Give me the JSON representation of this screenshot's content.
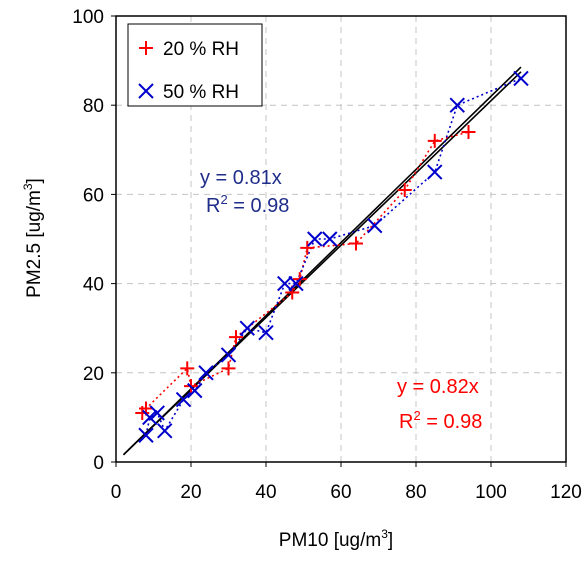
{
  "chart_data": {
    "type": "scatter",
    "xlabel": "PM10 [ug/m",
    "xlabel_sup": "3",
    "xlabel_end": "]",
    "ylabel": "PM2.5 [ug/m",
    "ylabel_sup": "3",
    "ylabel_end": "]",
    "xlim": [
      0,
      120
    ],
    "ylim": [
      0,
      100
    ],
    "x_ticks": [
      "0",
      "20",
      "40",
      "60",
      "80",
      "100",
      "120"
    ],
    "y_ticks": [
      "0",
      "20",
      "40",
      "60",
      "80",
      "100"
    ],
    "grid": true,
    "legend_position": "top-left",
    "series": [
      {
        "name": "20 % RH",
        "marker": "plus",
        "color": "#ff0000",
        "x": [
          7,
          8,
          19,
          20,
          30,
          32,
          47,
          49,
          51,
          64,
          77,
          85,
          94
        ],
        "y": [
          11,
          12,
          21,
          17,
          21,
          28,
          38,
          41,
          48,
          49,
          61,
          72,
          74
        ]
      },
      {
        "name": "50 % RH",
        "marker": "cross",
        "color": "#0000cc",
        "x": [
          8,
          9,
          11,
          13,
          18,
          21,
          24,
          30,
          35,
          40,
          45,
          48,
          53,
          57,
          69,
          85,
          91,
          108
        ],
        "y": [
          6,
          10,
          11,
          7,
          14,
          16,
          20,
          24,
          30,
          29,
          40,
          40,
          50,
          50,
          53,
          65,
          80,
          86
        ]
      }
    ],
    "trendlines": [
      {
        "series": "20 % RH",
        "slope": 0.82,
        "x_range": [
          2,
          108
        ],
        "color": "#000000"
      },
      {
        "series": "50 % RH",
        "slope": 0.81,
        "x_range": [
          2,
          108
        ],
        "color": "#000000"
      }
    ],
    "annotations": [
      {
        "id": "blue-eq",
        "line1": "y = 0.81x",
        "line2_pre": "R",
        "line2_sup": "2",
        "line2_post": " = 0.98",
        "color": "#1f2d8a"
      },
      {
        "id": "red-eq",
        "line1": "y = 0.82x",
        "line2_pre": "R",
        "line2_sup": "2",
        "line2_post": " = 0.98",
        "color": "#ff0000"
      }
    ]
  }
}
